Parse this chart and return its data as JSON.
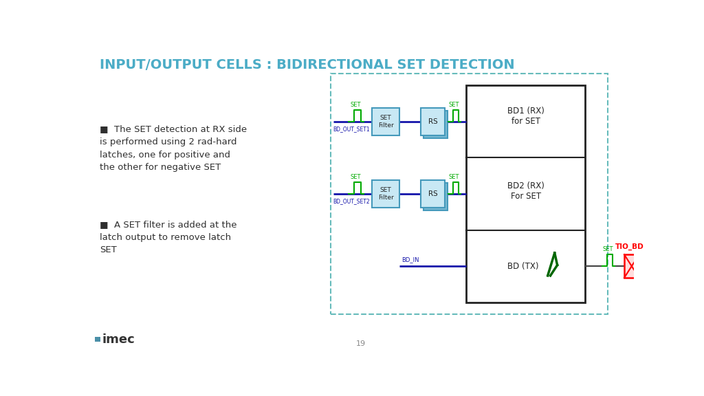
{
  "title": "INPUT/OUTPUT CELLS : BIDIRECTIONAL SET DETECTION",
  "title_color": "#4BACC6",
  "title_fontsize": 14,
  "bg_color": "#FFFFFF",
  "bullet_color": "#2F2F2F",
  "bullet_points_1": "The SET detection at RX side\nis performed using 2 rad-hard\nlatches, one for positive and\nthe other for negative SET",
  "bullet_points_2": "A SET filter is added at the\nlatch output to remove latch\nSET",
  "diagram_box_color": "#66BBBB",
  "signal_green": "#00AA00",
  "signal_blue": "#1414AA",
  "signal_red": "#CC0000",
  "filter_edge": "#4499BB",
  "filter_fill": "#C8E8F4",
  "rs_shadow_fill": "#7BBBD4",
  "rs_fill": "#C8E8F4",
  "main_block_edge": "#222222",
  "page_number": "19",
  "imec_color": "#333333"
}
